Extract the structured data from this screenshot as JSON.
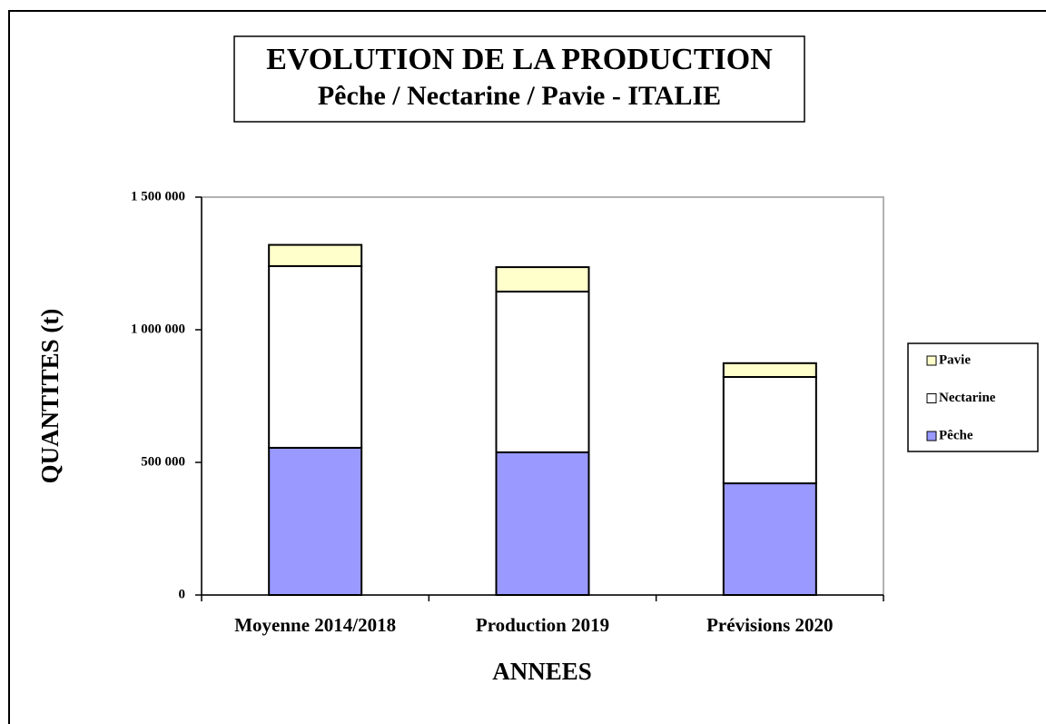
{
  "chart_data": {
    "type": "stacked_bar",
    "title": "EVOLUTION  DE LA PRODUCTION",
    "subtitle": "Pêche / Nectarine / Pavie - ITALIE",
    "y_label": "QUANTITES (t)",
    "x_label": "ANNEES",
    "categories": [
      "Moyenne 2014/2018",
      "Production 2019",
      "Prévisions 2020"
    ],
    "series": [
      {
        "name": "Pêche",
        "color": "#9999ff",
        "values": [
          555000,
          538000,
          421000
        ]
      },
      {
        "name": "Nectarine",
        "color": "#ffffff",
        "values": [
          685000,
          606000,
          401000
        ]
      },
      {
        "name": "Pavie",
        "color": "#ffffcc",
        "values": [
          80000,
          92000,
          52000
        ]
      }
    ],
    "ylim": [
      0,
      1500000
    ],
    "yticks": [
      0,
      {
        "value": 500000,
        "label": "500 000"
      },
      {
        "value": 1000000,
        "label": "1 000 000"
      },
      {
        "value": 1500000,
        "label": "1 500 000"
      }
    ],
    "grid": false,
    "legend": "right"
  }
}
